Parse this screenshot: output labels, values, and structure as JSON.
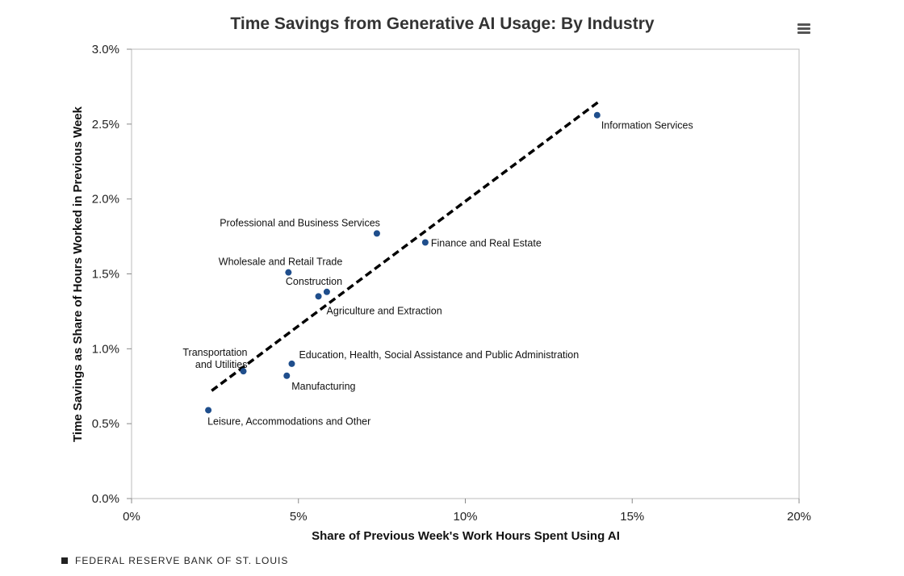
{
  "chart_data": {
    "type": "scatter",
    "title": "Time Savings from Generative AI Usage: By Industry",
    "xlabel": "Share of Previous Week's Work Hours Spent Using AI",
    "ylabel": "Time Savings as Share of Hours Worked in Previous Week",
    "xlim": [
      0,
      20
    ],
    "ylim": [
      0,
      3.0
    ],
    "x_ticks": [
      0,
      5,
      10,
      15,
      20
    ],
    "x_tick_labels": [
      "0%",
      "5%",
      "10%",
      "15%",
      "20%"
    ],
    "y_ticks": [
      0,
      0.5,
      1.0,
      1.5,
      2.0,
      2.5,
      3.0
    ],
    "y_tick_labels": [
      "0.0%",
      "0.5%",
      "1.0%",
      "1.5%",
      "2.0%",
      "2.5%",
      "3.0%"
    ],
    "grid": false,
    "point_color": "#1f4e8c",
    "trendline": {
      "style": "dashed",
      "color": "#000000",
      "x": [
        2.4,
        14.0
      ],
      "y": [
        0.72,
        2.65
      ]
    },
    "points": [
      {
        "name": "Information Services",
        "x": 13.95,
        "y": 2.56
      },
      {
        "name": "Professional and Business Services",
        "x": 7.35,
        "y": 1.77
      },
      {
        "name": "Finance and Real Estate",
        "x": 8.8,
        "y": 1.71
      },
      {
        "name": "Wholesale and Retail Trade",
        "x": 4.7,
        "y": 1.51
      },
      {
        "name": "Construction",
        "x": 5.85,
        "y": 1.38
      },
      {
        "name": "Agriculture and Extraction",
        "x": 5.6,
        "y": 1.35
      },
      {
        "name": "Transportation and Utilities",
        "x": 3.35,
        "y": 0.85
      },
      {
        "name": "Education, Health, Social Assistance and Public Administration",
        "x": 4.8,
        "y": 0.9
      },
      {
        "name": "Manufacturing",
        "x": 4.65,
        "y": 0.82
      },
      {
        "name": "Leisure, Accommodations and Other",
        "x": 2.3,
        "y": 0.59
      }
    ]
  },
  "source": {
    "text": "FEDERAL RESERVE BANK OF ST. LOUIS"
  },
  "menu": {
    "icon": "hamburger-menu-icon"
  }
}
